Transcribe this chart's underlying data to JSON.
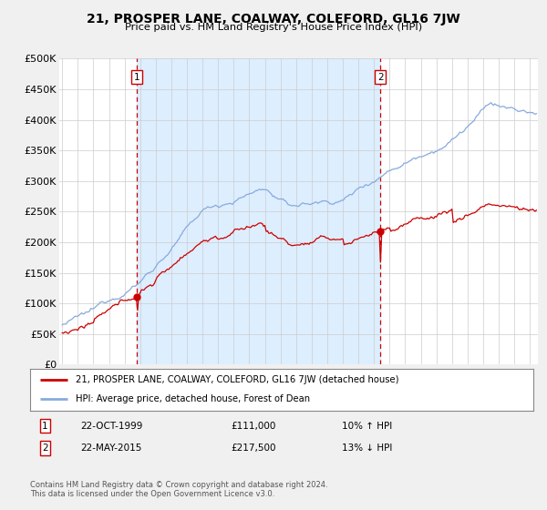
{
  "title": "21, PROSPER LANE, COALWAY, COLEFORD, GL16 7JW",
  "subtitle": "Price paid vs. HM Land Registry's House Price Index (HPI)",
  "legend_line1": "21, PROSPER LANE, COALWAY, COLEFORD, GL16 7JW (detached house)",
  "legend_line2": "HPI: Average price, detached house, Forest of Dean",
  "annotation1_label": "1",
  "annotation1_date": "22-OCT-1999",
  "annotation1_price": "£111,000",
  "annotation1_hpi": "10% ↑ HPI",
  "annotation2_label": "2",
  "annotation2_date": "22-MAY-2015",
  "annotation2_price": "£217,500",
  "annotation2_hpi": "13% ↓ HPI",
  "footnote": "Contains HM Land Registry data © Crown copyright and database right 2024.\nThis data is licensed under the Open Government Licence v3.0.",
  "property_color": "#cc0000",
  "hpi_color": "#88aadd",
  "shade_color": "#ddeeff",
  "background_color": "#f0f0f0",
  "plot_bg_color": "#ffffff",
  "ylim": [
    0,
    500000
  ],
  "yticks": [
    0,
    50000,
    100000,
    150000,
    200000,
    250000,
    300000,
    350000,
    400000,
    450000,
    500000
  ],
  "ytick_labels": [
    "£0",
    "£50K",
    "£100K",
    "£150K",
    "£200K",
    "£250K",
    "£300K",
    "£350K",
    "£400K",
    "£450K",
    "£500K"
  ],
  "sale1_x": 1999.8,
  "sale1_y": 111000,
  "sale2_x": 2015.4,
  "sale2_y": 217500,
  "xmin": 1994.8,
  "xmax": 2025.5
}
